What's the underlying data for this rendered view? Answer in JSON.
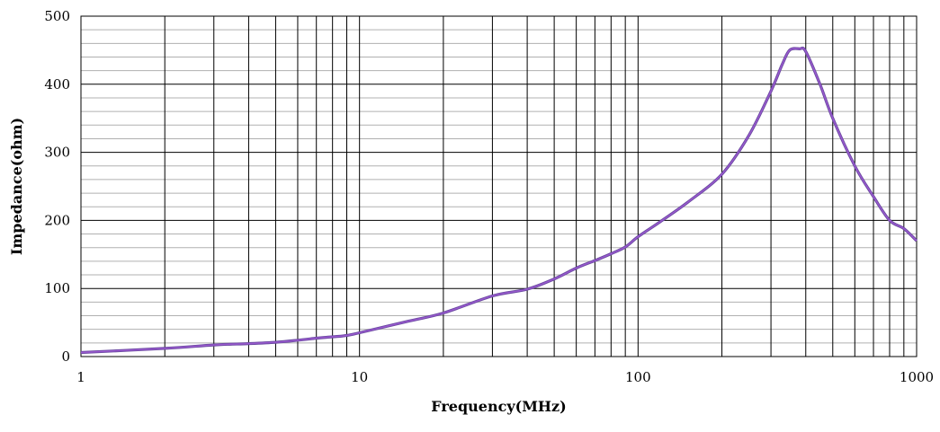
{
  "chart_data": {
    "type": "line",
    "title": "",
    "xlabel": "Frequency(MHz)",
    "ylabel": "Impedance(ohm)",
    "x_scale": "log",
    "xlim": [
      1,
      1000
    ],
    "ylim": [
      0,
      500
    ],
    "x_ticks": [
      "1",
      "10",
      "100",
      "1000"
    ],
    "y_ticks": [
      "0",
      "100",
      "200",
      "300",
      "400",
      "500"
    ],
    "grid": true,
    "legend": "none",
    "line_color": "#9b59d0",
    "series": [
      {
        "x": [
          1,
          2,
          3,
          4,
          5,
          6,
          7,
          8,
          9,
          10,
          15,
          20,
          30,
          40,
          50,
          60,
          70,
          80,
          90,
          100,
          120,
          150,
          200,
          250,
          300,
          330,
          350,
          380,
          400,
          450,
          500,
          600,
          700,
          800,
          900,
          1000
        ],
        "y": [
          6,
          12,
          17,
          19,
          21,
          24,
          27,
          29,
          31,
          35,
          52,
          64,
          89,
          99,
          114,
          130,
          141,
          151,
          161,
          176,
          198,
          226,
          268,
          325,
          390,
          430,
          450,
          452,
          448,
          400,
          350,
          280,
          235,
          200,
          188,
          170
        ]
      }
    ]
  }
}
